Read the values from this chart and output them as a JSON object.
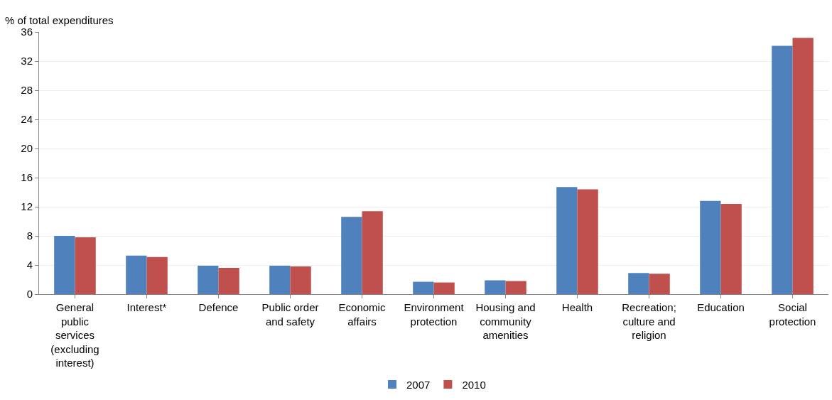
{
  "chart_data": {
    "type": "bar",
    "ylabel": "% of total expenditures",
    "categories": [
      "General public services (excluding interest)",
      "Interest*",
      "Defence",
      "Public order and safety",
      "Economic affairs",
      "Environment protection",
      "Housing and community amenities",
      "Health",
      "Recreation; culture and religion",
      "Education",
      "Social protection"
    ],
    "series": [
      {
        "name": "2007",
        "color": "#4f81bd",
        "values": [
          8.0,
          5.3,
          3.9,
          3.9,
          10.6,
          1.7,
          1.9,
          14.7,
          2.9,
          12.8,
          34.1
        ]
      },
      {
        "name": "2010",
        "color": "#c0504d",
        "values": [
          7.8,
          5.1,
          3.6,
          3.8,
          11.4,
          1.6,
          1.8,
          14.4,
          2.8,
          12.4,
          35.2
        ]
      }
    ],
    "ylim": [
      0,
      36
    ],
    "yticks": [
      0,
      4,
      8,
      12,
      16,
      20,
      24,
      28,
      32,
      36
    ],
    "grid": "y",
    "legend": "bottom"
  }
}
